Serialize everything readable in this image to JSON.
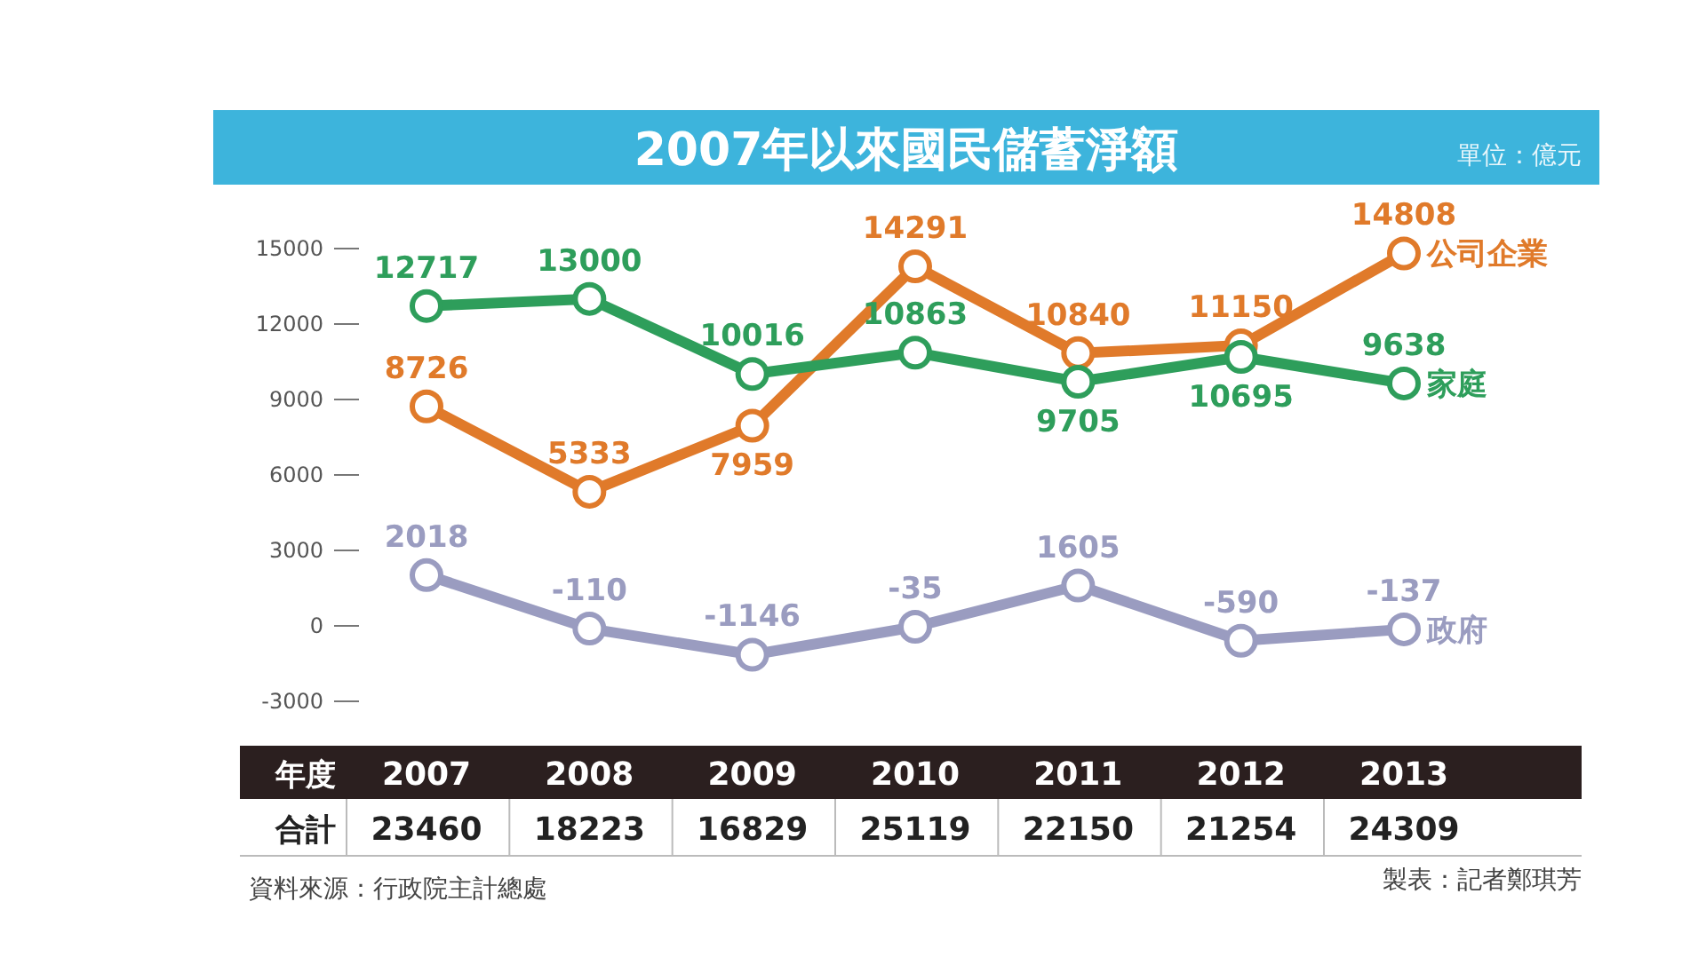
{
  "chart_data": {
    "type": "line",
    "title": "2007年以來國民儲蓄淨額",
    "categories": [
      "2007",
      "2008",
      "2009",
      "2010",
      "2011",
      "2012",
      "2013"
    ],
    "series": [
      {
        "name": "公司企業",
        "color": "#e07a2a",
        "values": [
          8726,
          5333,
          7959,
          14291,
          10840,
          11150,
          14808
        ]
      },
      {
        "name": "家庭",
        "color": "#2e9e5b",
        "values": [
          12717,
          13000,
          10016,
          10863,
          9705,
          10695,
          9638
        ]
      },
      {
        "name": "政府",
        "color": "#9a9cc0",
        "values": [
          2018,
          -110,
          -1146,
          -35,
          1605,
          -590,
          -137
        ]
      }
    ],
    "ylim": [
      -3000,
      15000
    ],
    "yticks": [
      -3000,
      0,
      3000,
      6000,
      9000,
      12000,
      15000
    ],
    "marker": "circle",
    "data_labels": true,
    "totals": [
      "23460",
      "18223",
      "16829",
      "25119",
      "22150",
      "21254",
      "24309"
    ],
    "annotations": [
      "單位：億元",
      "年度",
      "合計",
      "資料來源：行政院主計總處",
      "製表：記者鄭琪芳"
    ]
  }
}
